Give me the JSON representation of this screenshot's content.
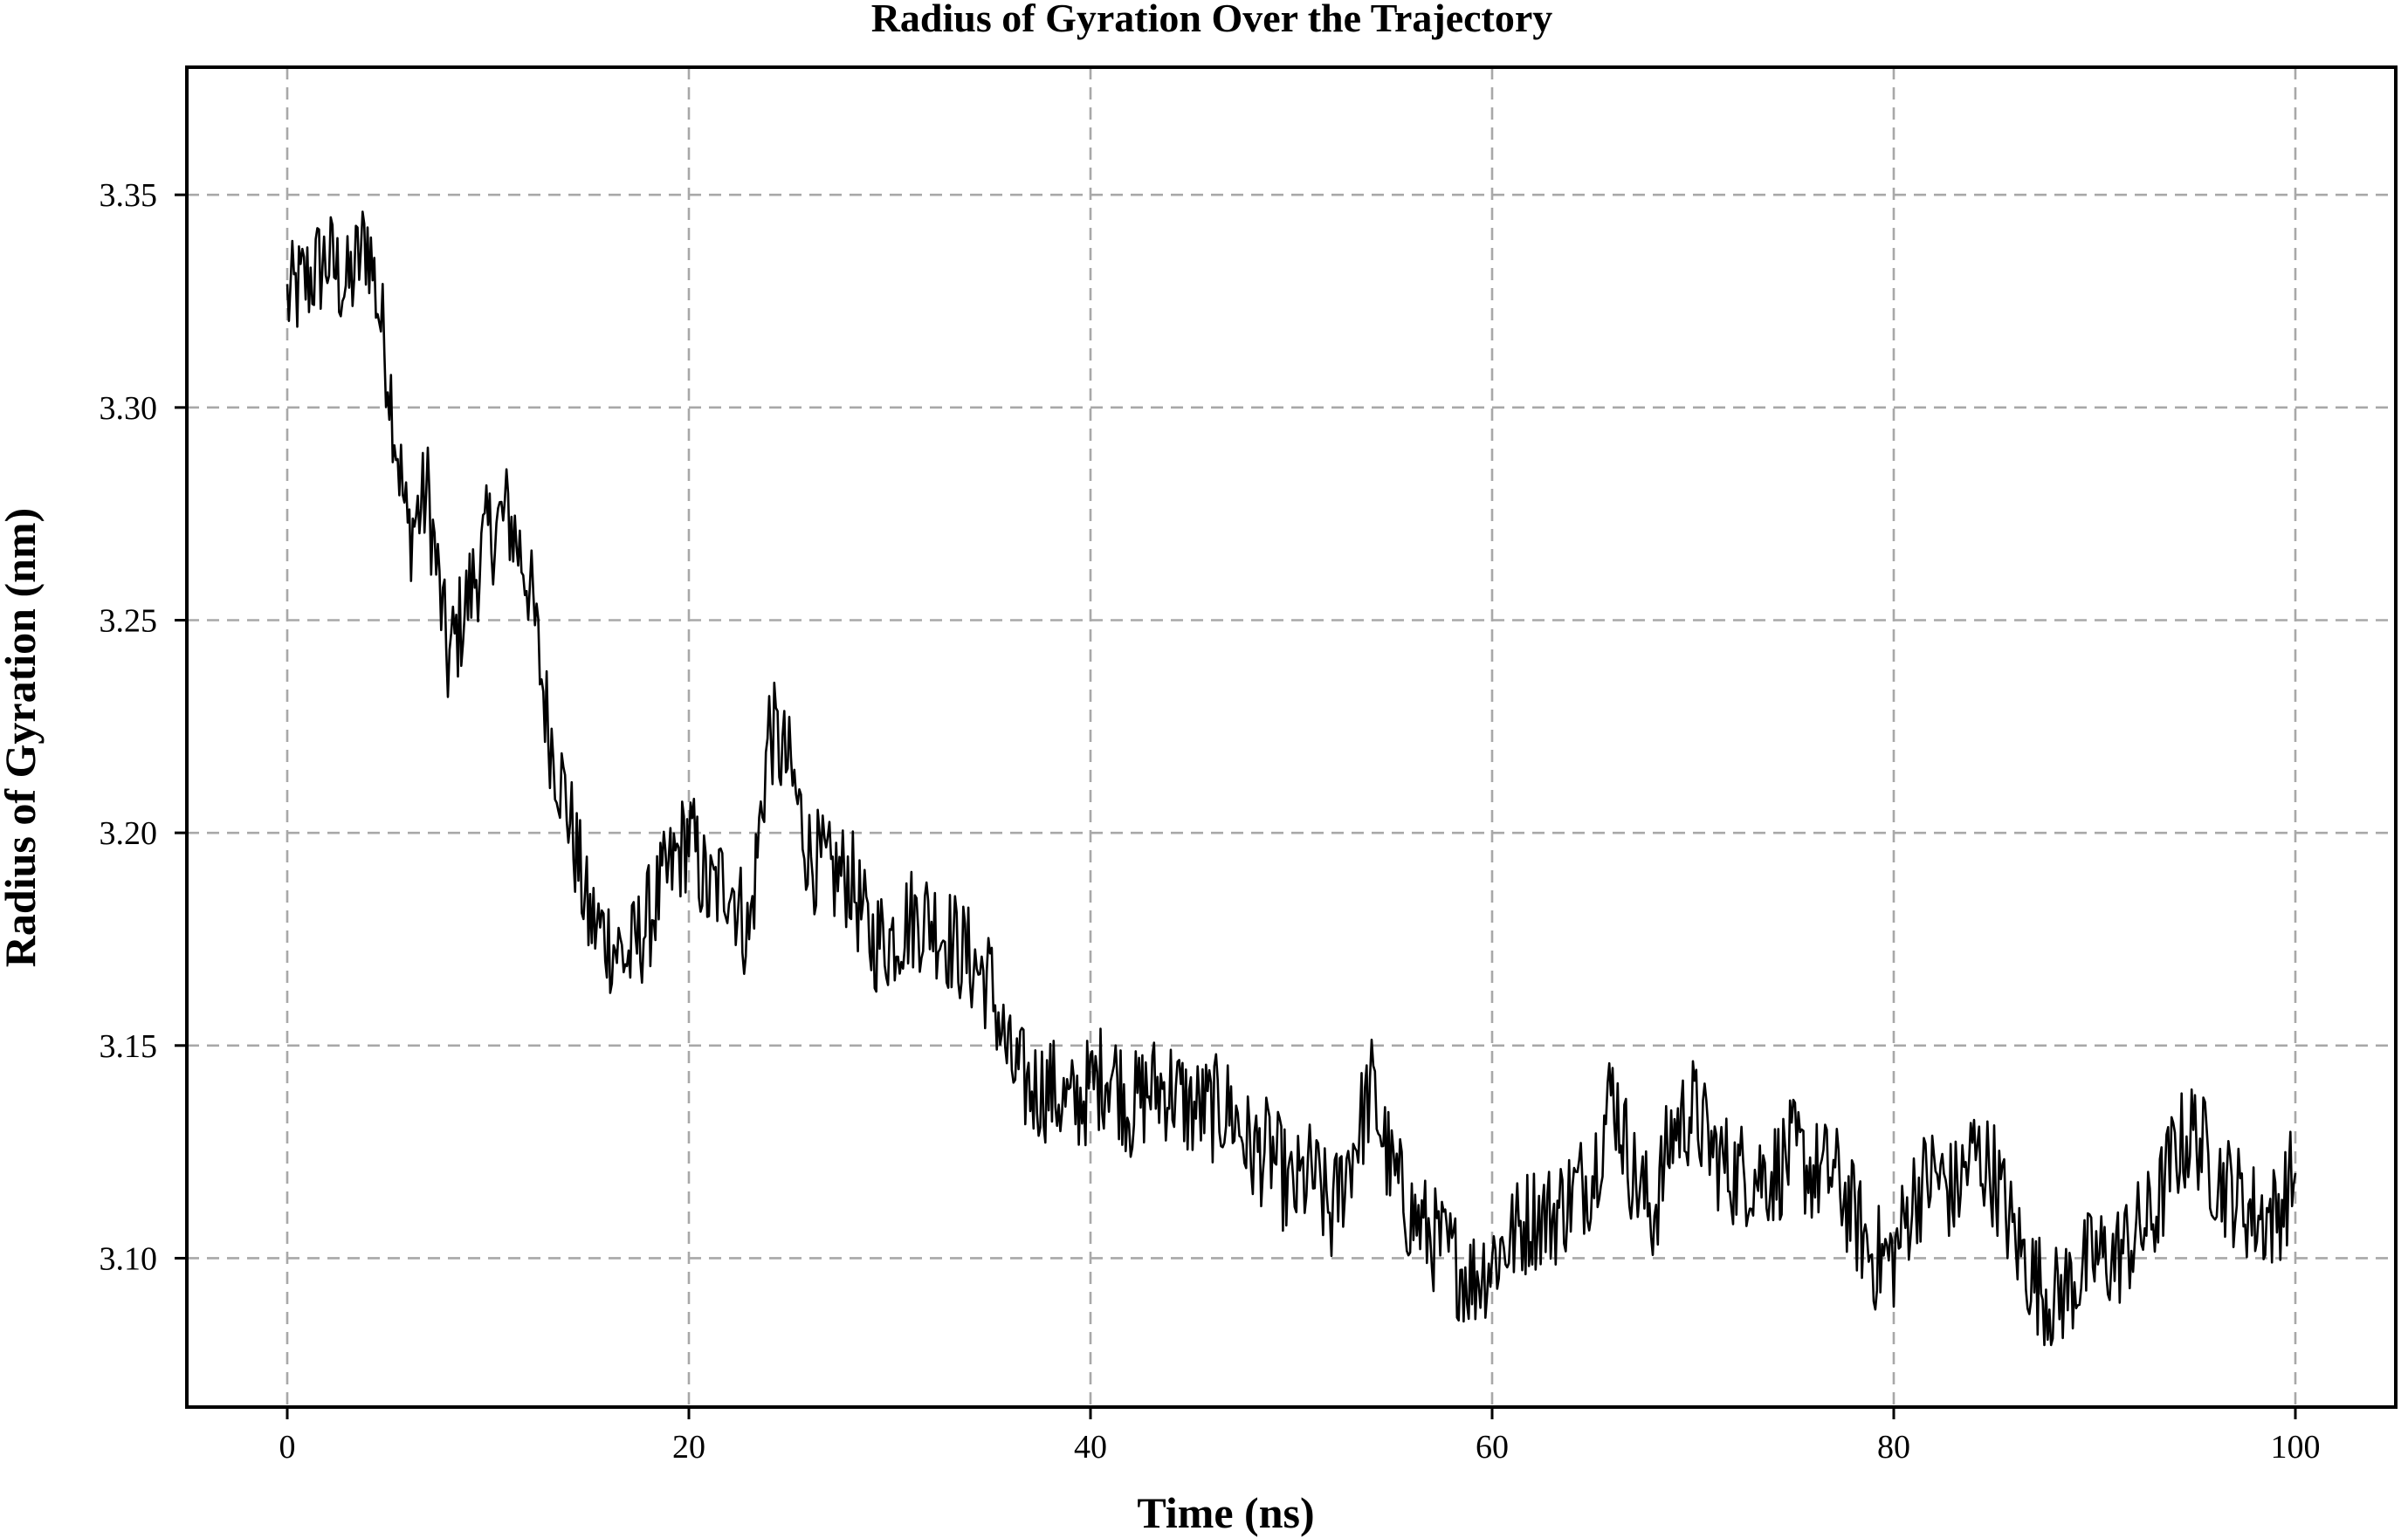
{
  "chart_data": {
    "type": "line",
    "title": "Radius of Gyration Over the Trajectory",
    "xlabel": "Time (ns)",
    "ylabel": "Radius of Gyration (nm)",
    "xlim": [
      -5,
      105
    ],
    "ylim": [
      3.065,
      3.38
    ],
    "x_ticks": [
      0,
      20,
      40,
      60,
      80,
      100
    ],
    "y_ticks": [
      3.1,
      3.15,
      3.2,
      3.25,
      3.3,
      3.35
    ],
    "x_tick_labels": [
      "0",
      "20",
      "40",
      "60",
      "80",
      "100"
    ],
    "y_tick_labels": [
      "3.10",
      "3.15",
      "3.20",
      "3.25",
      "3.30",
      "3.35"
    ],
    "grid": true,
    "line_color": "#000000",
    "x": [
      0,
      1,
      2,
      3,
      4,
      5,
      6,
      7,
      8,
      9,
      10,
      11,
      12,
      13,
      14,
      15,
      16,
      17,
      18,
      19,
      20,
      21,
      22,
      23,
      24,
      25,
      26,
      27,
      28,
      29,
      30,
      31,
      32,
      33,
      34,
      35,
      36,
      37,
      38,
      39,
      40,
      41,
      42,
      43,
      44,
      45,
      46,
      47,
      48,
      49,
      50,
      51,
      52,
      53,
      54,
      55,
      56,
      57,
      58,
      59,
      60,
      61,
      62,
      63,
      64,
      65,
      66,
      67,
      68,
      69,
      70,
      71,
      72,
      73,
      74,
      75,
      76,
      77,
      78,
      79,
      80,
      81,
      82,
      83,
      84,
      85,
      86,
      87,
      88,
      89,
      90,
      91,
      92,
      93,
      94,
      95,
      96,
      97,
      98,
      99,
      100
    ],
    "y": [
      3.325,
      3.33,
      3.335,
      3.328,
      3.34,
      3.31,
      3.27,
      3.28,
      3.24,
      3.255,
      3.27,
      3.275,
      3.26,
      3.225,
      3.205,
      3.18,
      3.175,
      3.17,
      3.18,
      3.19,
      3.2,
      3.185,
      3.19,
      3.175,
      3.225,
      3.215,
      3.195,
      3.19,
      3.19,
      3.175,
      3.175,
      3.18,
      3.18,
      3.175,
      3.17,
      3.165,
      3.145,
      3.14,
      3.14,
      3.135,
      3.14,
      3.145,
      3.135,
      3.14,
      3.14,
      3.135,
      3.135,
      3.135,
      3.125,
      3.125,
      3.115,
      3.12,
      3.11,
      3.125,
      3.14,
      3.12,
      3.11,
      3.105,
      3.1,
      3.095,
      3.1,
      3.105,
      3.11,
      3.11,
      3.115,
      3.12,
      3.14,
      3.12,
      3.11,
      3.13,
      3.135,
      3.125,
      3.12,
      3.12,
      3.12,
      3.125,
      3.12,
      3.12,
      3.11,
      3.1,
      3.1,
      3.115,
      3.12,
      3.115,
      3.125,
      3.12,
      3.105,
      3.095,
      3.09,
      3.095,
      3.1,
      3.1,
      3.105,
      3.11,
      3.125,
      3.13,
      3.12,
      3.115,
      3.11,
      3.11,
      3.12
    ]
  }
}
